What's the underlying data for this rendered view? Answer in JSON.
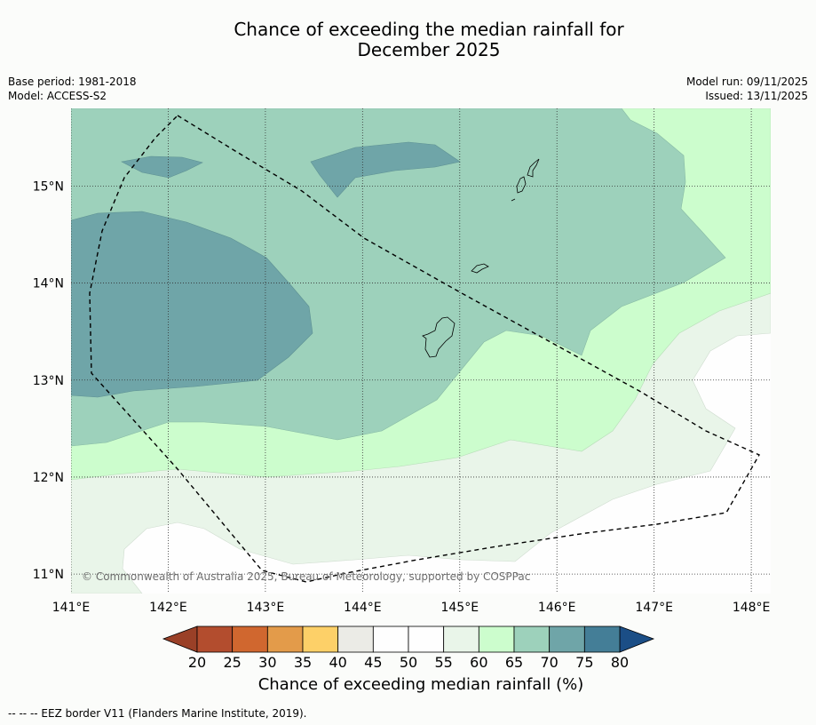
{
  "title": {
    "line1": "Chance of exceeding the median rainfall for",
    "line2": "December 2025"
  },
  "meta": {
    "base_period": "Base period: 1981-2018",
    "model": "Model: ACCESS-S2",
    "model_run": "Model run: 09/11/2025",
    "issued": "Issued: 13/11/2025"
  },
  "map": {
    "lon_range": [
      141,
      148.2
    ],
    "lat_range": [
      10.8,
      15.8
    ],
    "lon_ticks": [
      {
        "value": 141,
        "label": "141°E"
      },
      {
        "value": 142,
        "label": "142°E"
      },
      {
        "value": 143,
        "label": "143°E"
      },
      {
        "value": 144,
        "label": "144°E"
      },
      {
        "value": 145,
        "label": "145°E"
      },
      {
        "value": 146,
        "label": "146°E"
      },
      {
        "value": 147,
        "label": "147°E"
      },
      {
        "value": 148,
        "label": "148°E"
      }
    ],
    "lat_ticks": [
      {
        "value": 15,
        "label": "15°N"
      },
      {
        "value": 14,
        "label": "14°N"
      },
      {
        "value": 13,
        "label": "13°N"
      },
      {
        "value": 12,
        "label": "12°N"
      },
      {
        "value": 11,
        "label": "11°N"
      }
    ],
    "copyright": "© Commonwealth of Australia 2025, Bureau of Meteorology, supported by COSPPac"
  },
  "chart_data": {
    "type": "heatmap",
    "title": "Chance of exceeding the median rainfall for December 2025",
    "variable": "Chance of exceeding median rainfall (%)",
    "contour_levels": [
      20,
      25,
      30,
      35,
      40,
      45,
      50,
      55,
      60,
      65,
      70,
      75,
      80
    ],
    "regions": [
      {
        "label": "70-75%",
        "color": "#6fa5a8",
        "location": "western area near 141-143.5°E, 12.8-14.6°N and small patches near 142°E 15.2°N and 144.5°E 15.2°N"
      },
      {
        "label": "65-70%",
        "color": "#9dd1bb",
        "location": "northern half of domain, north of about 12.5°N in west to 13.5°N in east"
      },
      {
        "label": "60-65%",
        "color": "#ccfdcd",
        "location": "band from 12°N in west to 16°N in east"
      },
      {
        "label": "55-60%",
        "color": "#e9f5e9",
        "location": "band south of 12°N and east of 146.5°E"
      },
      {
        "label": "50-55%",
        "color": "#fefefe",
        "location": "southernmost and south-eastern parts"
      }
    ]
  },
  "colorbar": {
    "ticks": [
      "20",
      "25",
      "30",
      "35",
      "40",
      "45",
      "50",
      "55",
      "60",
      "65",
      "70",
      "75",
      "80"
    ],
    "colors": [
      "#b34d2e",
      "#d0672f",
      "#e39b4a",
      "#fdd068",
      "#ebebe6",
      "#fefefe",
      "#fefefe",
      "#e9f5e9",
      "#ccfdcd",
      "#9dd1bb",
      "#6fa5a8",
      "#447e97"
    ],
    "low_extend_color": "#9a4027",
    "high_extend_color": "#1b4e86",
    "title": "Chance of exceeding median rainfall (%)"
  },
  "footer": "--  --  -- EEZ border V11 (Flanders Marine Institute, 2019)."
}
